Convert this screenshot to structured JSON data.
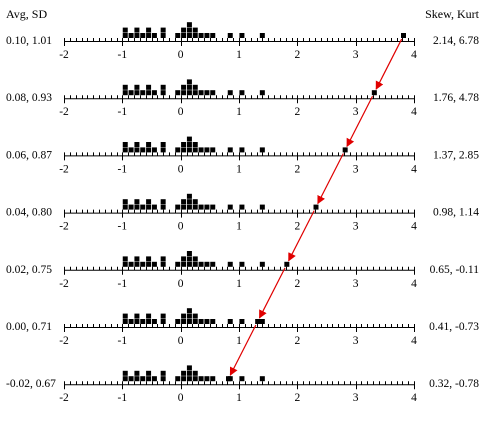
{
  "chart_data": {
    "type": "scatter",
    "header": {
      "left": "Avg, SD",
      "right": "Skew, Kurt"
    },
    "x_range": [
      -2,
      4
    ],
    "tick_labels": [
      "-2",
      "-1",
      "0",
      "1",
      "2",
      "3",
      "4"
    ],
    "colors": {
      "points": "#000000",
      "arrows": "#e00000"
    },
    "base_points": [
      {
        "x": -0.95,
        "count": 2
      },
      {
        "x": -0.85,
        "count": 1
      },
      {
        "x": -0.75,
        "count": 2
      },
      {
        "x": -0.65,
        "count": 1
      },
      {
        "x": -0.55,
        "count": 2
      },
      {
        "x": -0.45,
        "count": 1
      },
      {
        "x": -0.3,
        "count": 2
      },
      {
        "x": -0.05,
        "count": 1
      },
      {
        "x": 0.05,
        "count": 2
      },
      {
        "x": 0.15,
        "count": 3
      },
      {
        "x": 0.25,
        "count": 2
      },
      {
        "x": 0.35,
        "count": 1
      },
      {
        "x": 0.45,
        "count": 1
      },
      {
        "x": 0.55,
        "count": 1
      },
      {
        "x": 0.85,
        "count": 1
      },
      {
        "x": 1.05,
        "count": 1
      },
      {
        "x": 1.4,
        "count": 1
      }
    ],
    "rows": [
      {
        "left": "0.10, 1.01",
        "right": "2.14, 6.78",
        "outlier": 3.82
      },
      {
        "left": "0.08, 0.93",
        "right": "1.76, 4.78",
        "outlier": 3.32
      },
      {
        "left": "0.06, 0.87",
        "right": "1.37, 2.85",
        "outlier": 2.82
      },
      {
        "left": "0.04, 0.80",
        "right": "0.98, 1.14",
        "outlier": 2.32
      },
      {
        "left": "0.02, 0.75",
        "right": "0.65, -0.11",
        "outlier": 1.82
      },
      {
        "left": "0.00, 0.71",
        "right": "0.41, -0.73",
        "outlier": 1.32
      },
      {
        "left": "-0.02, 0.67",
        "right": "0.32, -0.78",
        "outlier": 0.82
      }
    ]
  }
}
